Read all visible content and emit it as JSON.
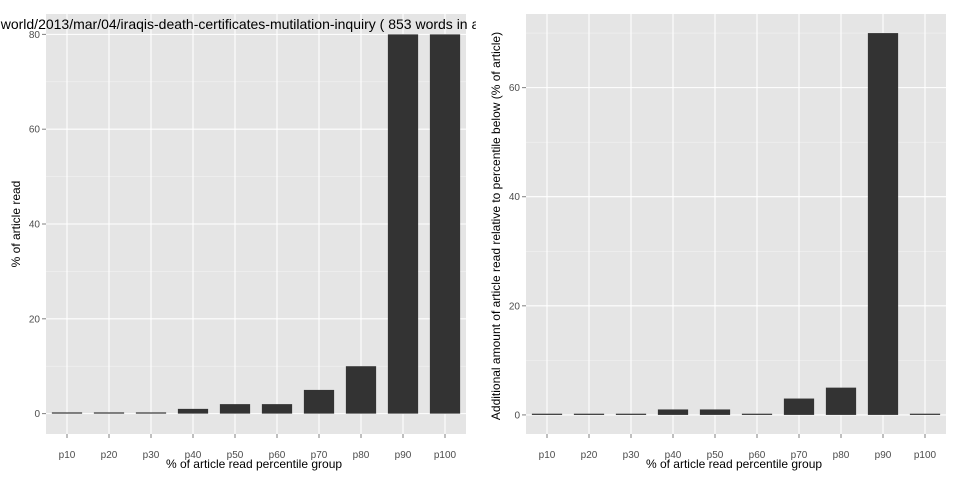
{
  "colors": {
    "panel_bg": "#e5e5e5",
    "grid_major": "#ffffff",
    "grid_minor": "#f2f2f2",
    "bar_fill": "#333333",
    "tick_text": "#4d4d4d"
  },
  "chart_data": [
    {
      "type": "bar",
      "title": "world/2013/mar/04/iraqis-death-certificates-mutilation-inquiry ( 853 words in a",
      "xlabel": "% of article read percentile group",
      "ylabel": "% of article read",
      "categories": [
        "p10",
        "p20",
        "p30",
        "p40",
        "p50",
        "p60",
        "p70",
        "p80",
        "p90",
        "p100"
      ],
      "values": [
        0,
        0,
        0,
        1,
        2,
        2,
        5,
        10,
        80,
        80
      ],
      "ylim": [
        -4.3,
        84.3
      ],
      "yticks": [
        0,
        20,
        40,
        60,
        80
      ],
      "grid": true
    },
    {
      "type": "bar",
      "title": "",
      "xlabel": "% of article read percentile group",
      "ylabel": "Additional amount of article read relative to percentile below (% of article)",
      "categories": [
        "p10",
        "p20",
        "p30",
        "p40",
        "p50",
        "p60",
        "p70",
        "p80",
        "p90",
        "p100"
      ],
      "values": [
        0,
        0,
        0,
        1,
        1,
        0,
        3,
        5,
        70,
        0
      ],
      "ylim": [
        -3.5,
        73.5
      ],
      "yticks": [
        0,
        20,
        40,
        60
      ],
      "grid": true
    }
  ]
}
